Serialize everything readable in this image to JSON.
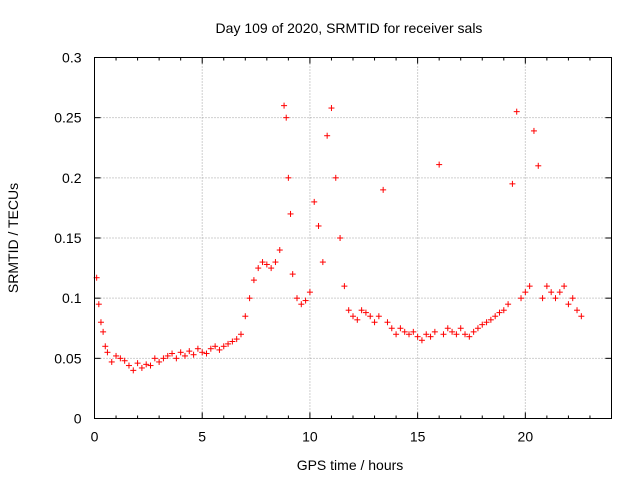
{
  "chart_data": {
    "type": "scatter",
    "title": "Day 109 of 2020, SRMTID for receiver sals",
    "xlabel": "GPS time / hours",
    "ylabel": "SRMTID / TECUs",
    "xlim": [
      0,
      24
    ],
    "ylim": [
      0,
      0.3
    ],
    "xticks": [
      0,
      5,
      10,
      15,
      20
    ],
    "xtick_labels": [
      "0",
      "5",
      "10",
      "15",
      "20"
    ],
    "yticks": [
      0,
      0.05,
      0.1,
      0.15,
      0.2,
      0.25,
      0.3
    ],
    "ytick_labels": [
      "0",
      "0.05",
      "0.1",
      "0.15",
      "0.2",
      "0.25",
      "0.3"
    ],
    "grid": true,
    "marker": "+",
    "color": "#ff0000",
    "series": [
      {
        "name": "SRMTID",
        "points": [
          [
            0.1,
            0.117
          ],
          [
            0.2,
            0.095
          ],
          [
            0.3,
            0.08
          ],
          [
            0.4,
            0.072
          ],
          [
            0.5,
            0.06
          ],
          [
            0.6,
            0.055
          ],
          [
            0.8,
            0.047
          ],
          [
            1.0,
            0.052
          ],
          [
            1.2,
            0.05
          ],
          [
            1.4,
            0.048
          ],
          [
            1.6,
            0.044
          ],
          [
            1.8,
            0.04
          ],
          [
            2.0,
            0.046
          ],
          [
            2.2,
            0.042
          ],
          [
            2.4,
            0.045
          ],
          [
            2.6,
            0.044
          ],
          [
            2.8,
            0.05
          ],
          [
            3.0,
            0.047
          ],
          [
            3.2,
            0.05
          ],
          [
            3.4,
            0.052
          ],
          [
            3.6,
            0.054
          ],
          [
            3.8,
            0.05
          ],
          [
            4.0,
            0.055
          ],
          [
            4.2,
            0.052
          ],
          [
            4.4,
            0.056
          ],
          [
            4.6,
            0.053
          ],
          [
            4.8,
            0.058
          ],
          [
            5.0,
            0.055
          ],
          [
            5.2,
            0.054
          ],
          [
            5.4,
            0.058
          ],
          [
            5.6,
            0.06
          ],
          [
            5.8,
            0.057
          ],
          [
            6.0,
            0.06
          ],
          [
            6.2,
            0.062
          ],
          [
            6.4,
            0.064
          ],
          [
            6.6,
            0.066
          ],
          [
            6.8,
            0.07
          ],
          [
            7.0,
            0.085
          ],
          [
            7.2,
            0.1
          ],
          [
            7.4,
            0.115
          ],
          [
            7.6,
            0.125
          ],
          [
            7.8,
            0.13
          ],
          [
            8.0,
            0.128
          ],
          [
            8.2,
            0.125
          ],
          [
            8.4,
            0.13
          ],
          [
            8.6,
            0.14
          ],
          [
            8.8,
            0.26
          ],
          [
            8.9,
            0.25
          ],
          [
            9.0,
            0.2
          ],
          [
            9.1,
            0.17
          ],
          [
            9.2,
            0.12
          ],
          [
            9.4,
            0.1
          ],
          [
            9.6,
            0.095
          ],
          [
            9.8,
            0.098
          ],
          [
            10.0,
            0.105
          ],
          [
            10.2,
            0.18
          ],
          [
            10.4,
            0.16
          ],
          [
            10.6,
            0.13
          ],
          [
            10.8,
            0.235
          ],
          [
            11.0,
            0.258
          ],
          [
            11.2,
            0.2
          ],
          [
            11.4,
            0.15
          ],
          [
            11.6,
            0.11
          ],
          [
            11.8,
            0.09
          ],
          [
            12.0,
            0.085
          ],
          [
            12.2,
            0.082
          ],
          [
            12.4,
            0.09
          ],
          [
            12.6,
            0.088
          ],
          [
            12.8,
            0.085
          ],
          [
            13.0,
            0.08
          ],
          [
            13.2,
            0.085
          ],
          [
            13.4,
            0.19
          ],
          [
            13.6,
            0.08
          ],
          [
            13.8,
            0.075
          ],
          [
            14.0,
            0.07
          ],
          [
            14.2,
            0.075
          ],
          [
            14.4,
            0.072
          ],
          [
            14.6,
            0.07
          ],
          [
            14.8,
            0.072
          ],
          [
            15.0,
            0.068
          ],
          [
            15.2,
            0.065
          ],
          [
            15.4,
            0.07
          ],
          [
            15.6,
            0.068
          ],
          [
            15.8,
            0.072
          ],
          [
            16.0,
            0.211
          ],
          [
            16.2,
            0.07
          ],
          [
            16.4,
            0.075
          ],
          [
            16.6,
            0.072
          ],
          [
            16.8,
            0.07
          ],
          [
            17.0,
            0.075
          ],
          [
            17.2,
            0.07
          ],
          [
            17.4,
            0.068
          ],
          [
            17.6,
            0.072
          ],
          [
            17.8,
            0.075
          ],
          [
            18.0,
            0.078
          ],
          [
            18.2,
            0.08
          ],
          [
            18.4,
            0.082
          ],
          [
            18.6,
            0.085
          ],
          [
            18.8,
            0.088
          ],
          [
            19.0,
            0.09
          ],
          [
            19.2,
            0.095
          ],
          [
            19.4,
            0.195
          ],
          [
            19.6,
            0.255
          ],
          [
            19.8,
            0.1
          ],
          [
            20.0,
            0.105
          ],
          [
            20.2,
            0.11
          ],
          [
            20.4,
            0.239
          ],
          [
            20.6,
            0.21
          ],
          [
            20.8,
            0.1
          ],
          [
            21.0,
            0.11
          ],
          [
            21.2,
            0.105
          ],
          [
            21.4,
            0.1
          ],
          [
            21.6,
            0.105
          ],
          [
            21.8,
            0.11
          ],
          [
            22.0,
            0.095
          ],
          [
            22.2,
            0.1
          ],
          [
            22.4,
            0.09
          ],
          [
            22.6,
            0.085
          ]
        ]
      }
    ]
  }
}
